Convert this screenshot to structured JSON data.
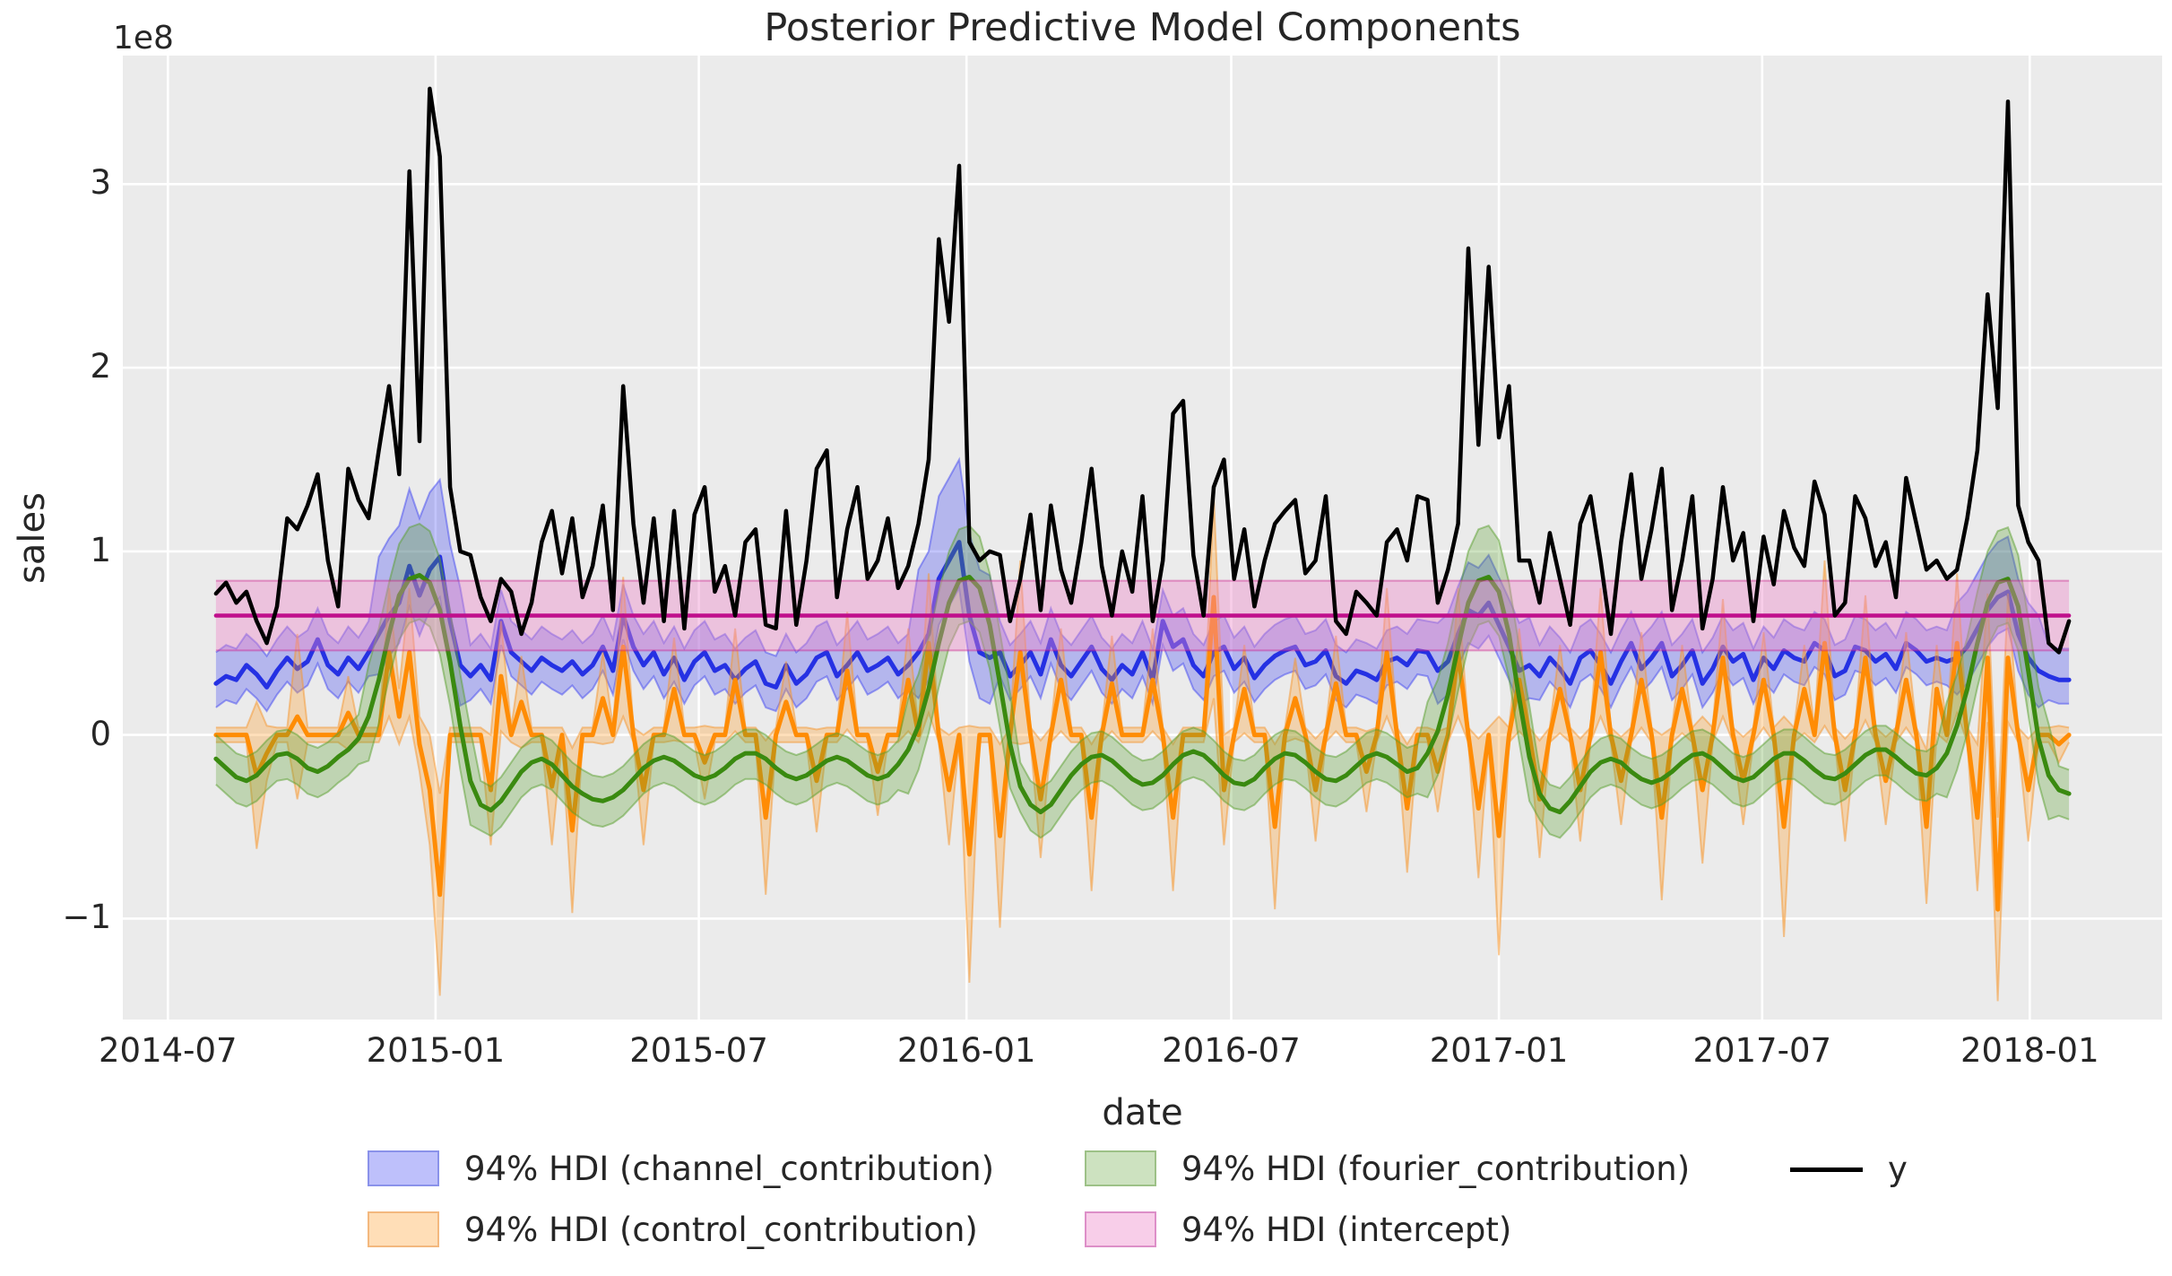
{
  "chart_data": {
    "type": "line",
    "title": "Posterior Predictive Model Components",
    "xlabel": "date",
    "ylabel": "sales",
    "y_offset_label": "1e8",
    "grid": true,
    "legend_position": "bottom",
    "value_units": "1e8",
    "xlim_days_from_2014_07_01": [
      -31,
      1371
    ],
    "ylim": [
      -1.55,
      3.7
    ],
    "x_start_day": 33,
    "x_step_days": 7,
    "n_points": 183,
    "x_ticks": [
      {
        "day": 0,
        "label": "2014-07"
      },
      {
        "day": 184,
        "label": "2015-01"
      },
      {
        "day": 365,
        "label": "2015-07"
      },
      {
        "day": 549,
        "label": "2016-01"
      },
      {
        "day": 731,
        "label": "2016-07"
      },
      {
        "day": 915,
        "label": "2017-01"
      },
      {
        "day": 1096,
        "label": "2017-07"
      },
      {
        "day": 1280,
        "label": "2018-01"
      }
    ],
    "y_ticks": [
      {
        "value": -1,
        "label": "−1"
      },
      {
        "value": 0,
        "label": "0"
      },
      {
        "value": 1,
        "label": "1"
      },
      {
        "value": 2,
        "label": "2"
      },
      {
        "value": 3,
        "label": "3"
      }
    ],
    "series": [
      {
        "key": "channel_contribution",
        "type": "hdi",
        "line_color": "#2531e3",
        "line_width": 5,
        "fill": "rgba(52,58,242,0.30)",
        "edge": "rgba(52,58,242,0.45)",
        "band": {
          "base_dn": 0.13,
          "base_up": 0.17,
          "wide": [
            {
              "from": 16,
              "to": 24,
              "dn": 0.22,
              "up": 0.42
            },
            {
              "from": 69,
              "to": 76,
              "dn": 0.25,
              "up": 0.45
            },
            {
              "from": 120,
              "to": 129,
              "dn": 0.18,
              "up": 0.26
            },
            {
              "from": 171,
              "to": 179,
              "dn": 0.2,
              "up": 0.3
            }
          ]
        },
        "mean": [
          0.28,
          0.32,
          0.3,
          0.38,
          0.33,
          0.26,
          0.35,
          0.42,
          0.36,
          0.4,
          0.52,
          0.38,
          0.33,
          0.42,
          0.36,
          0.45,
          0.55,
          0.65,
          0.72,
          0.92,
          0.76,
          0.9,
          0.97,
          0.62,
          0.38,
          0.32,
          0.38,
          0.3,
          0.62,
          0.45,
          0.4,
          0.35,
          0.42,
          0.38,
          0.35,
          0.4,
          0.33,
          0.38,
          0.48,
          0.35,
          0.65,
          0.48,
          0.38,
          0.45,
          0.33,
          0.42,
          0.3,
          0.4,
          0.45,
          0.35,
          0.38,
          0.3,
          0.36,
          0.4,
          0.28,
          0.26,
          0.38,
          0.28,
          0.33,
          0.42,
          0.45,
          0.32,
          0.38,
          0.45,
          0.35,
          0.38,
          0.42,
          0.33,
          0.38,
          0.45,
          0.55,
          0.85,
          0.95,
          1.05,
          0.65,
          0.45,
          0.42,
          0.45,
          0.32,
          0.38,
          0.45,
          0.33,
          0.52,
          0.38,
          0.32,
          0.4,
          0.48,
          0.36,
          0.3,
          0.38,
          0.33,
          0.45,
          0.3,
          0.62,
          0.48,
          0.52,
          0.38,
          0.32,
          0.45,
          0.48,
          0.36,
          0.42,
          0.31,
          0.38,
          0.43,
          0.46,
          0.48,
          0.38,
          0.4,
          0.46,
          0.32,
          0.28,
          0.35,
          0.33,
          0.3,
          0.4,
          0.42,
          0.38,
          0.46,
          0.45,
          0.35,
          0.4,
          0.55,
          0.68,
          0.65,
          0.72,
          0.6,
          0.48,
          0.35,
          0.38,
          0.32,
          0.42,
          0.36,
          0.28,
          0.42,
          0.46,
          0.38,
          0.28,
          0.4,
          0.5,
          0.36,
          0.42,
          0.5,
          0.32,
          0.38,
          0.46,
          0.28,
          0.36,
          0.48,
          0.4,
          0.44,
          0.3,
          0.42,
          0.36,
          0.46,
          0.42,
          0.4,
          0.5,
          0.46,
          0.32,
          0.35,
          0.48,
          0.46,
          0.4,
          0.44,
          0.36,
          0.5,
          0.46,
          0.4,
          0.42,
          0.4,
          0.42,
          0.48,
          0.58,
          0.68,
          0.75,
          0.78,
          0.55,
          0.42,
          0.35,
          0.32,
          0.3,
          0.3
        ]
      },
      {
        "key": "control_contribution",
        "type": "hdi",
        "line_color": "#ff8c05",
        "line_width": 5,
        "fill": "rgba(255,160,50,0.33)",
        "edge": "rgba(245,150,45,0.50)",
        "mean": [
          0,
          0,
          0,
          0,
          -0.22,
          -0.1,
          0,
          0,
          0.1,
          0,
          0,
          0,
          0,
          0.12,
          0,
          0,
          0,
          0.45,
          0.1,
          0.45,
          -0.05,
          -0.3,
          -0.87,
          0,
          0,
          0,
          0,
          -0.3,
          0.32,
          0,
          0.18,
          0,
          0,
          -0.28,
          0,
          -0.52,
          0,
          0,
          0.2,
          0,
          0.48,
          0,
          -0.3,
          0,
          0,
          0.25,
          0,
          0,
          -0.15,
          0,
          0,
          0.3,
          0,
          0,
          -0.45,
          0,
          0.18,
          0,
          0,
          -0.25,
          0,
          0,
          0.35,
          0,
          0,
          -0.2,
          0,
          0,
          0.3,
          0,
          0.5,
          0,
          -0.3,
          0,
          -0.65,
          0,
          0,
          -0.55,
          0,
          0.45,
          0,
          -0.35,
          0,
          0.3,
          0,
          0,
          -0.45,
          0,
          0.28,
          0,
          0,
          0,
          0.3,
          0,
          -0.45,
          0,
          0,
          0,
          0.75,
          -0.3,
          0,
          0.25,
          0,
          0,
          -0.5,
          0,
          0.2,
          0,
          -0.3,
          0,
          0.28,
          0,
          0,
          -0.2,
          0,
          0.45,
          0,
          -0.4,
          0,
          0,
          -0.2,
          0,
          0.45,
          0,
          -0.4,
          0,
          -0.55,
          0,
          0.3,
          0,
          -0.35,
          0,
          0.25,
          0,
          -0.3,
          0,
          0.45,
          0,
          -0.25,
          0,
          0.3,
          0,
          -0.45,
          0,
          0.25,
          0,
          -0.3,
          0,
          0.42,
          0,
          -0.25,
          0,
          0.3,
          0,
          -0.5,
          0,
          0.25,
          0,
          0.5,
          0,
          -0.3,
          0,
          0.42,
          0,
          -0.25,
          0,
          0.3,
          0,
          -0.5,
          0.25,
          0,
          0.5,
          0,
          -0.45,
          0.42,
          -0.95,
          0.42,
          0,
          -0.3,
          0,
          0,
          -0.05,
          0
        ],
        "spread": [
          0.04,
          0.04,
          0.04,
          0.04,
          0.4,
          0.15,
          0.04,
          0.04,
          0.45,
          0.04,
          0.04,
          0.04,
          0.04,
          0.2,
          0.04,
          0.04,
          0.04,
          0.35,
          0.15,
          0.35,
          0.15,
          0.3,
          0.55,
          0.04,
          0.04,
          0.04,
          0.04,
          0.3,
          0.3,
          0.04,
          0.25,
          0.04,
          0.04,
          0.32,
          0.04,
          0.45,
          0.04,
          0.04,
          0.25,
          0.04,
          0.38,
          0.04,
          0.3,
          0.04,
          0.04,
          0.28,
          0.04,
          0.04,
          0.2,
          0.04,
          0.04,
          0.28,
          0.04,
          0.04,
          0.42,
          0.04,
          0.22,
          0.04,
          0.04,
          0.28,
          0.04,
          0.04,
          0.32,
          0.04,
          0.04,
          0.24,
          0.04,
          0.04,
          0.28,
          0.04,
          0.38,
          0.04,
          0.3,
          0.04,
          0.7,
          0.04,
          0.04,
          0.5,
          0.04,
          0.5,
          0.04,
          0.32,
          0.04,
          0.28,
          0.04,
          0.04,
          0.4,
          0.04,
          0.26,
          0.04,
          0.04,
          0.04,
          0.28,
          0.04,
          0.4,
          0.04,
          0.04,
          0.04,
          0.55,
          0.3,
          0.04,
          0.24,
          0.04,
          0.04,
          0.45,
          0.04,
          0.22,
          0.04,
          0.28,
          0.04,
          0.26,
          0.04,
          0.04,
          0.22,
          0.04,
          0.35,
          0.04,
          0.35,
          0.04,
          0.04,
          0.22,
          0.04,
          0.35,
          0.04,
          0.38,
          0.04,
          0.65,
          0.04,
          0.28,
          0.04,
          0.32,
          0.04,
          0.24,
          0.04,
          0.28,
          0.04,
          0.35,
          0.04,
          0.24,
          0.04,
          0.26,
          0.04,
          0.45,
          0.04,
          0.24,
          0.04,
          0.4,
          0.04,
          0.32,
          0.04,
          0.24,
          0.04,
          0.26,
          0.04,
          0.6,
          0.04,
          0.24,
          0.04,
          0.45,
          0.04,
          0.28,
          0.04,
          0.34,
          0.04,
          0.24,
          0.04,
          0.26,
          0.04,
          0.42,
          0.24,
          0.04,
          0.38,
          0.04,
          0.4,
          0.35,
          0.5,
          0.35,
          0.04,
          0.28,
          0.04,
          0.04,
          0.1,
          0.04
        ]
      },
      {
        "key": "fourier_contribution",
        "type": "hdi",
        "line_color": "#3a8a10",
        "line_width": 5,
        "fill": "rgba(90,160,45,0.30)",
        "edge": "rgba(90,160,45,0.50)",
        "band": {
          "base_dn": 0.14,
          "base_up": 0.13,
          "wide": [
            {
              "from": 15,
              "to": 25,
              "dn": 0.24,
              "up": 0.28
            },
            {
              "from": 68,
              "to": 78,
              "dn": 0.24,
              "up": 0.28
            },
            {
              "from": 119,
              "to": 129,
              "dn": 0.24,
              "up": 0.28
            },
            {
              "from": 170,
              "to": 180,
              "dn": 0.24,
              "up": 0.28
            }
          ]
        },
        "mean": [
          -0.13,
          -0.18,
          -0.23,
          -0.25,
          -0.22,
          -0.16,
          -0.11,
          -0.1,
          -0.13,
          -0.18,
          -0.2,
          -0.17,
          -0.12,
          -0.08,
          -0.02,
          0.1,
          0.3,
          0.55,
          0.76,
          0.85,
          0.87,
          0.83,
          0.68,
          0.4,
          0.05,
          -0.25,
          -0.38,
          -0.41,
          -0.36,
          -0.28,
          -0.2,
          -0.15,
          -0.13,
          -0.16,
          -0.22,
          -0.28,
          -0.32,
          -0.35,
          -0.36,
          -0.34,
          -0.3,
          -0.24,
          -0.18,
          -0.14,
          -0.12,
          -0.14,
          -0.18,
          -0.22,
          -0.24,
          -0.22,
          -0.18,
          -0.13,
          -0.1,
          -0.1,
          -0.13,
          -0.18,
          -0.22,
          -0.24,
          -0.22,
          -0.18,
          -0.14,
          -0.12,
          -0.14,
          -0.18,
          -0.22,
          -0.24,
          -0.22,
          -0.16,
          -0.08,
          0.05,
          0.25,
          0.5,
          0.72,
          0.84,
          0.86,
          0.8,
          0.6,
          0.28,
          -0.05,
          -0.28,
          -0.38,
          -0.42,
          -0.38,
          -0.3,
          -0.22,
          -0.16,
          -0.12,
          -0.11,
          -0.14,
          -0.19,
          -0.24,
          -0.27,
          -0.26,
          -0.22,
          -0.16,
          -0.11,
          -0.09,
          -0.11,
          -0.16,
          -0.22,
          -0.26,
          -0.27,
          -0.24,
          -0.18,
          -0.13,
          -0.1,
          -0.11,
          -0.15,
          -0.2,
          -0.24,
          -0.25,
          -0.22,
          -0.17,
          -0.12,
          -0.1,
          -0.12,
          -0.16,
          -0.2,
          -0.18,
          -0.1,
          0.02,
          0.22,
          0.48,
          0.72,
          0.84,
          0.86,
          0.78,
          0.55,
          0.2,
          -0.12,
          -0.32,
          -0.4,
          -0.42,
          -0.36,
          -0.28,
          -0.2,
          -0.15,
          -0.13,
          -0.15,
          -0.2,
          -0.24,
          -0.26,
          -0.24,
          -0.2,
          -0.15,
          -0.11,
          -0.1,
          -0.13,
          -0.18,
          -0.23,
          -0.25,
          -0.23,
          -0.18,
          -0.13,
          -0.1,
          -0.1,
          -0.14,
          -0.19,
          -0.23,
          -0.24,
          -0.21,
          -0.16,
          -0.11,
          -0.08,
          -0.08,
          -0.12,
          -0.17,
          -0.21,
          -0.22,
          -0.18,
          -0.1,
          0.05,
          0.25,
          0.5,
          0.72,
          0.83,
          0.85,
          0.7,
          0.35,
          -0.02,
          -0.22,
          -0.3,
          -0.32
        ]
      },
      {
        "key": "intercept",
        "type": "hdi-const",
        "line_color": "#c0108c",
        "line_width": 4.5,
        "fill": "rgba(237,132,200,0.40)",
        "edge": "rgba(199,21,133,0.40)",
        "mean": 0.65,
        "lo": 0.46,
        "hi": 0.84
      },
      {
        "key": "y",
        "type": "line",
        "line_color": "#000000",
        "line_width": 4.5,
        "values": [
          0.77,
          0.83,
          0.72,
          0.78,
          0.62,
          0.5,
          0.7,
          1.18,
          1.12,
          1.25,
          1.42,
          0.95,
          0.7,
          1.45,
          1.28,
          1.18,
          1.55,
          1.9,
          1.42,
          3.07,
          1.6,
          3.52,
          3.15,
          1.35,
          1.0,
          0.98,
          0.75,
          0.62,
          0.85,
          0.78,
          0.55,
          0.72,
          1.05,
          1.22,
          0.88,
          1.18,
          0.75,
          0.92,
          1.25,
          0.68,
          1.9,
          1.15,
          0.72,
          1.18,
          0.62,
          1.22,
          0.58,
          1.2,
          1.35,
          0.78,
          0.92,
          0.65,
          1.05,
          1.12,
          0.6,
          0.58,
          1.22,
          0.6,
          0.95,
          1.45,
          1.55,
          0.75,
          1.12,
          1.35,
          0.85,
          0.95,
          1.18,
          0.8,
          0.92,
          1.15,
          1.5,
          2.7,
          2.25,
          3.1,
          1.05,
          0.95,
          1.0,
          0.98,
          0.62,
          0.85,
          1.2,
          0.68,
          1.25,
          0.9,
          0.72,
          1.05,
          1.45,
          0.92,
          0.65,
          1.0,
          0.78,
          1.3,
          0.62,
          0.95,
          1.75,
          1.82,
          0.98,
          0.65,
          1.35,
          1.5,
          0.85,
          1.12,
          0.7,
          0.95,
          1.15,
          1.22,
          1.28,
          0.88,
          0.95,
          1.3,
          0.62,
          0.55,
          0.78,
          0.72,
          0.65,
          1.05,
          1.12,
          0.95,
          1.3,
          1.28,
          0.72,
          0.9,
          1.15,
          2.65,
          1.58,
          2.55,
          1.62,
          1.9,
          0.95,
          0.95,
          0.72,
          1.1,
          0.85,
          0.6,
          1.15,
          1.3,
          0.95,
          0.55,
          1.05,
          1.42,
          0.85,
          1.12,
          1.45,
          0.68,
          0.95,
          1.3,
          0.58,
          0.85,
          1.35,
          0.95,
          1.1,
          0.62,
          1.08,
          0.82,
          1.22,
          1.02,
          0.92,
          1.38,
          1.2,
          0.65,
          0.72,
          1.3,
          1.18,
          0.92,
          1.05,
          0.75,
          1.4,
          1.15,
          0.9,
          0.95,
          0.85,
          0.9,
          1.18,
          1.55,
          2.4,
          1.78,
          3.45,
          1.25,
          1.05,
          0.95,
          0.5,
          0.45,
          0.62
        ]
      }
    ],
    "legend": {
      "items": [
        {
          "label": "94% HDI (channel_contribution)",
          "type": "patch",
          "fill": "rgba(52,58,242,0.32)",
          "edge": "#8a92ea"
        },
        {
          "label": "94% HDI (control_contribution)",
          "type": "patch",
          "fill": "rgba(255,160,50,0.35)",
          "edge": "#f3b87e"
        },
        {
          "label": "94% HDI (fourier_contribution)",
          "type": "patch",
          "fill": "rgba(90,160,45,0.30)",
          "edge": "#9dc187"
        },
        {
          "label": "94% HDI (intercept)",
          "type": "patch",
          "fill": "rgba(237,132,200,0.40)",
          "edge": "#dd8fc8"
        },
        {
          "label": "y",
          "type": "line",
          "color": "#000000"
        }
      ]
    },
    "colors": {
      "plot_background": "#ebebeb",
      "grid": "#ffffff",
      "text": "#262626"
    }
  }
}
